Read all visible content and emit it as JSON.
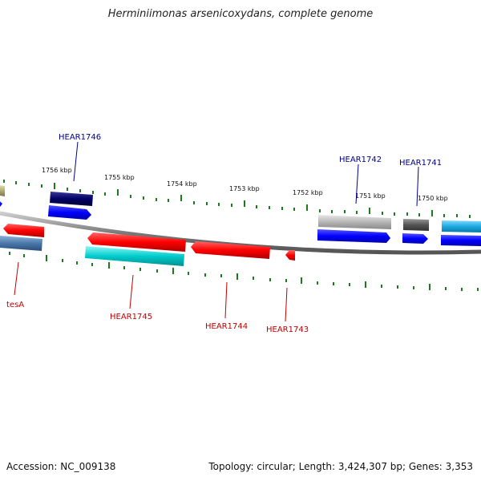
{
  "title": "Herminiimonas arsenicoxydans, complete genome",
  "footer": {
    "accession": "Accession: NC_009138",
    "summary": "Topology: circular; Length: 3,424,307 bp; Genes: 3,353"
  },
  "colors": {
    "backbone": "#8a8a8a",
    "tick": "#1e7a1e",
    "label_top": "#00008b",
    "label_bottom": "#c00000"
  },
  "scale_labels": [
    "1756 kbp",
    "1755 kbp",
    "1754 kbp",
    "1753 kbp",
    "1752 kbp",
    "1751 kbp",
    "1750 kbp"
  ],
  "gene_labels_top": [
    "HEAR1746",
    "HEAR1742",
    "HEAR1741"
  ],
  "gene_labels_bottom": [
    "tesA",
    "HEAR1745",
    "HEAR1744",
    "HEAR1743"
  ]
}
